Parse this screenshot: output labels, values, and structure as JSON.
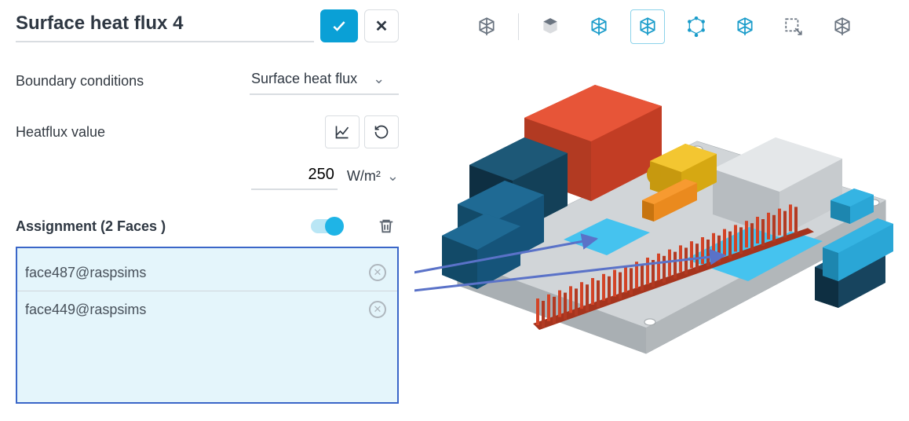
{
  "accent_color": "#0aa0d6",
  "highlight_color": "#3a66c8",
  "panel_bg": "#ffffff",
  "assign_bg": "#e4f5fb",
  "header": {
    "title": "Surface heat flux 4"
  },
  "properties": {
    "boundary_conditions": {
      "label": "Boundary conditions",
      "value": "Surface heat flux"
    },
    "heatflux": {
      "label": "Heatflux value",
      "value": "250",
      "unit": "W/m²"
    }
  },
  "assignment": {
    "label_prefix": "Assignment (",
    "label_suffix": " Faces )",
    "count": "2",
    "toggle_on": true,
    "faces": [
      {
        "name": "face487@raspsims"
      },
      {
        "name": "face449@raspsims"
      }
    ]
  },
  "toolbar": {
    "items": [
      {
        "name": "view-cube-icon",
        "active": false,
        "teal": false
      },
      {
        "sep": true
      },
      {
        "name": "solid-cube-icon",
        "active": false,
        "teal": false
      },
      {
        "name": "shaded-cube-icon",
        "active": false,
        "teal": true
      },
      {
        "name": "wire-cube-icon",
        "active": true,
        "teal": true
      },
      {
        "name": "vertices-cube-icon",
        "active": false,
        "teal": true
      },
      {
        "name": "outline-cube-icon",
        "active": false,
        "teal": true
      },
      {
        "name": "select-box-icon",
        "active": false,
        "teal": false
      },
      {
        "name": "ghost-cube-icon",
        "active": false,
        "teal": false
      }
    ]
  },
  "scene": {
    "description": "Isometric Raspberry-Pi-style PCB with highlighted heat-source faces",
    "board_color": "#c3c8cb",
    "board_edge_color": "#a9afb3",
    "hole_color": "#ffffff",
    "components": [
      {
        "name": "cpu-block-large",
        "shape": "box",
        "fill": "#d34427",
        "stroke": "#b23a22"
      },
      {
        "name": "cpu-block-side",
        "shape": "box",
        "fill": "#17445e",
        "stroke": "#0e2f42"
      },
      {
        "name": "cpu-block-mid",
        "shape": "box",
        "fill": "#1a5e84",
        "stroke": "#124a68"
      },
      {
        "name": "cpu-block-front",
        "shape": "box",
        "fill": "#1a5e84",
        "stroke": "#124a68"
      },
      {
        "name": "usb-block",
        "shape": "box",
        "fill": "#d6dadd",
        "stroke": "#b7bcc0"
      },
      {
        "name": "av-jack",
        "shape": "box",
        "fill": "#e7b516",
        "stroke": "#c7990f"
      },
      {
        "name": "camera-conn",
        "shape": "slab",
        "fill": "#ea8a1e",
        "stroke": "#c7740f"
      },
      {
        "name": "gpio-header",
        "shape": "pins",
        "fill": "#d34427",
        "stroke": "#a6341d"
      },
      {
        "name": "chip-right-blue",
        "shape": "slab",
        "fill": "#2aa6d6",
        "stroke": "#1d86af"
      },
      {
        "name": "chip-right-dark",
        "shape": "slab",
        "fill": "#17445e",
        "stroke": "#0e2f42"
      },
      {
        "name": "chip-top-right-small",
        "shape": "slab",
        "fill": "#2aa6d6",
        "stroke": "#1d86af"
      }
    ],
    "selected_faces": [
      {
        "name": "face487-highlight",
        "fill": "#45c3ef"
      },
      {
        "name": "face449-highlight",
        "fill": "#45c3ef"
      }
    ],
    "connector_color": "#5a72c8"
  }
}
